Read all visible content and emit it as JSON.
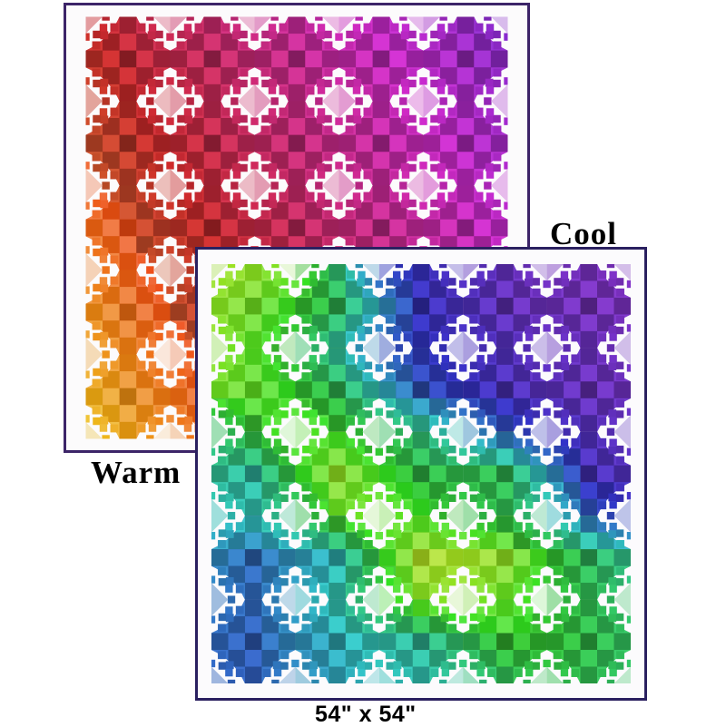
{
  "caption": "54\" x 54\"",
  "quilts": [
    {
      "id": "warm",
      "label": "Warm",
      "border_color": "#3c2468",
      "background_color": "#fcfbfc",
      "saturation": 66,
      "boost": {
        "h0": 15,
        "h1": 80,
        "ds": 20,
        "dl": 9
      },
      "hue_grid": [
        [
          360,
          351,
          342,
          334,
          325,
          316,
          307,
          298,
          290,
          281,
          272
        ],
        [
          365,
          356,
          347,
          339,
          330,
          321,
          312,
          303,
          295,
          286,
          277
        ],
        [
          370,
          361,
          352,
          343,
          334,
          326,
          317,
          308,
          299,
          290,
          282
        ],
        [
          374,
          366,
          357,
          348,
          339,
          330,
          322,
          313,
          304,
          295,
          286
        ],
        [
          379,
          370,
          362,
          353,
          344,
          335,
          326,
          318,
          309,
          300,
          291
        ],
        [
          384,
          375,
          366,
          358,
          349,
          340,
          331,
          322,
          314,
          305,
          296
        ],
        [
          389,
          380,
          371,
          362,
          354,
          345,
          336,
          327,
          318,
          310,
          301
        ],
        [
          394,
          385,
          376,
          367,
          358,
          350,
          341,
          332,
          323,
          314,
          306
        ],
        [
          398,
          390,
          381,
          372,
          363,
          354,
          346,
          337,
          328,
          319,
          310
        ],
        [
          403,
          394,
          386,
          377,
          368,
          359,
          350,
          342,
          333,
          324,
          315
        ],
        [
          408,
          399,
          390,
          382,
          373,
          364,
          355,
          346,
          338,
          329,
          320
        ]
      ]
    },
    {
      "id": "cool",
      "label": "Cool",
      "border_color": "#2a2060",
      "background_color": "#fcfbfd",
      "saturation": 60,
      "boost": {
        "h0": 58,
        "h1": 115,
        "ds": 16,
        "dl": 8
      },
      "hue_grid": [
        [
          80,
          85,
          95,
          150,
          235,
          243,
          255,
          262,
          268,
          270,
          272
        ],
        [
          88,
          95,
          115,
          135,
          190,
          243,
          252,
          262,
          266,
          270,
          271
        ],
        [
          85,
          105,
          125,
          170,
          220,
          238,
          248,
          255,
          260,
          264,
          268
        ],
        [
          95,
          100,
          118,
          135,
          180,
          225,
          240,
          252,
          258,
          265,
          266
        ],
        [
          150,
          120,
          100,
          115,
          130,
          150,
          190,
          225,
          245,
          255,
          260
        ],
        [
          160,
          170,
          120,
          85,
          110,
          130,
          132,
          135,
          190,
          250,
          255
        ],
        [
          180,
          172,
          150,
          100,
          95,
          110,
          125,
          135,
          160,
          220,
          240
        ],
        [
          200,
          215,
          195,
          180,
          120,
          75,
          80,
          85,
          115,
          140,
          160
        ],
        [
          210,
          215,
          195,
          170,
          130,
          90,
          90,
          100,
          120,
          135,
          145
        ],
        [
          215,
          220,
          200,
          185,
          172,
          165,
          140,
          118,
          120,
          130,
          140
        ],
        [
          218,
          220,
          205,
          190,
          180,
          175,
          160,
          140,
          132,
          135,
          142
        ]
      ]
    }
  ]
}
